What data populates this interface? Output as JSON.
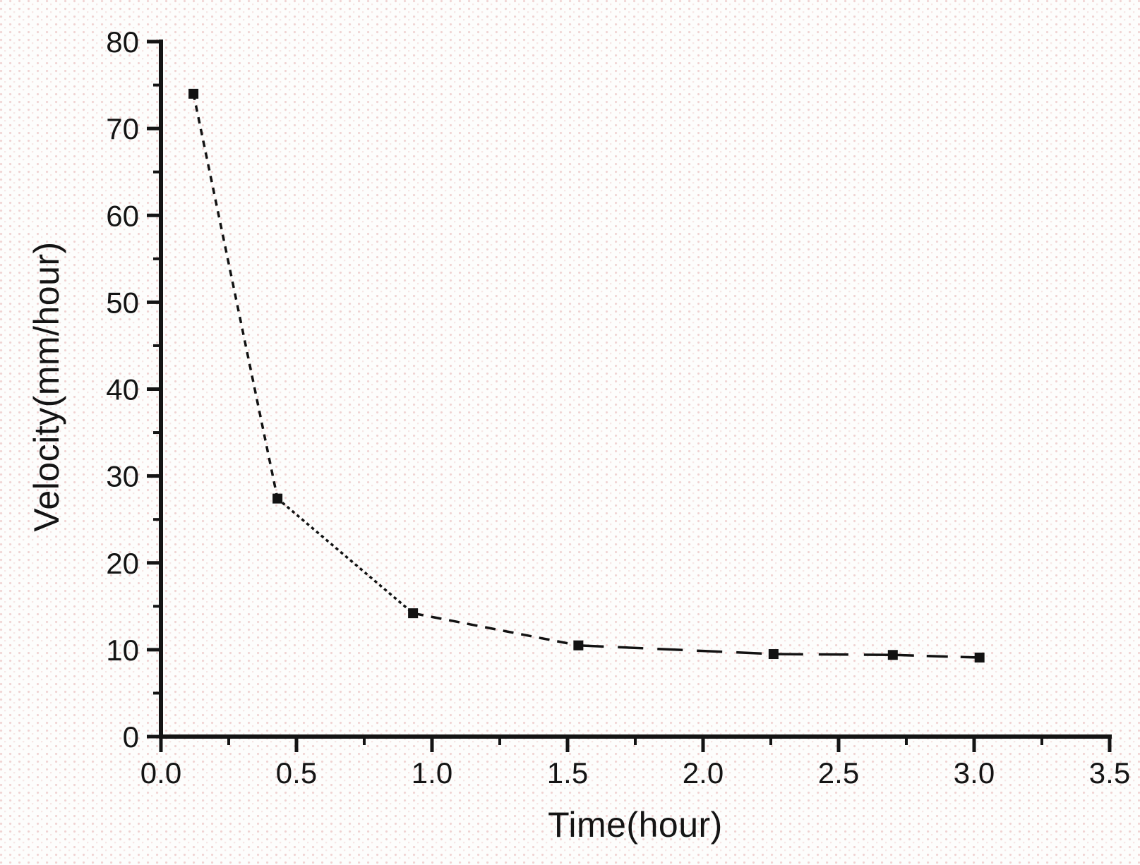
{
  "figure": {
    "description": "Scanned scatter-line plot of settling velocity versus time",
    "background_dot_color": "#e2a6a6",
    "ink_color": "#141414"
  },
  "chart_data": {
    "type": "line",
    "title": "",
    "xlabel": "Time(hour)",
    "ylabel": "Velocity(mm/hour)",
    "series": [
      {
        "name": "Velocity",
        "x": [
          0.12,
          0.43,
          0.93,
          1.54,
          2.26,
          2.7,
          3.02
        ],
        "y": [
          74.0,
          27.4,
          14.2,
          10.5,
          9.5,
          9.4,
          9.1
        ]
      }
    ],
    "xlim": [
      0,
      3.5
    ],
    "ylim": [
      0,
      80
    ],
    "x_tick_values": [
      0,
      0.5,
      1.0,
      1.5,
      2.0,
      2.5,
      3.0,
      3.5
    ],
    "x_tick_labels": [
      "0.0",
      "0.5",
      "1.0",
      "1.5",
      "2.0",
      "2.5",
      "3.0",
      "3.5"
    ],
    "x_minor_tick_values": [
      0.25,
      0.75,
      1.25,
      1.75,
      2.25,
      2.75,
      3.25
    ],
    "y_tick_values": [
      0,
      10,
      20,
      30,
      40,
      50,
      60,
      70,
      80
    ],
    "y_tick_labels": [
      "0",
      "10",
      "20",
      "30",
      "40",
      "50",
      "60",
      "70",
      "80"
    ],
    "y_minor_tick_values": [
      5,
      15,
      25,
      35,
      45,
      55,
      65,
      75
    ],
    "grid": false,
    "legend": "none",
    "line_style": "dashed",
    "marker": "filled-square",
    "line_color": "#121212",
    "marker_color": "#121212"
  }
}
